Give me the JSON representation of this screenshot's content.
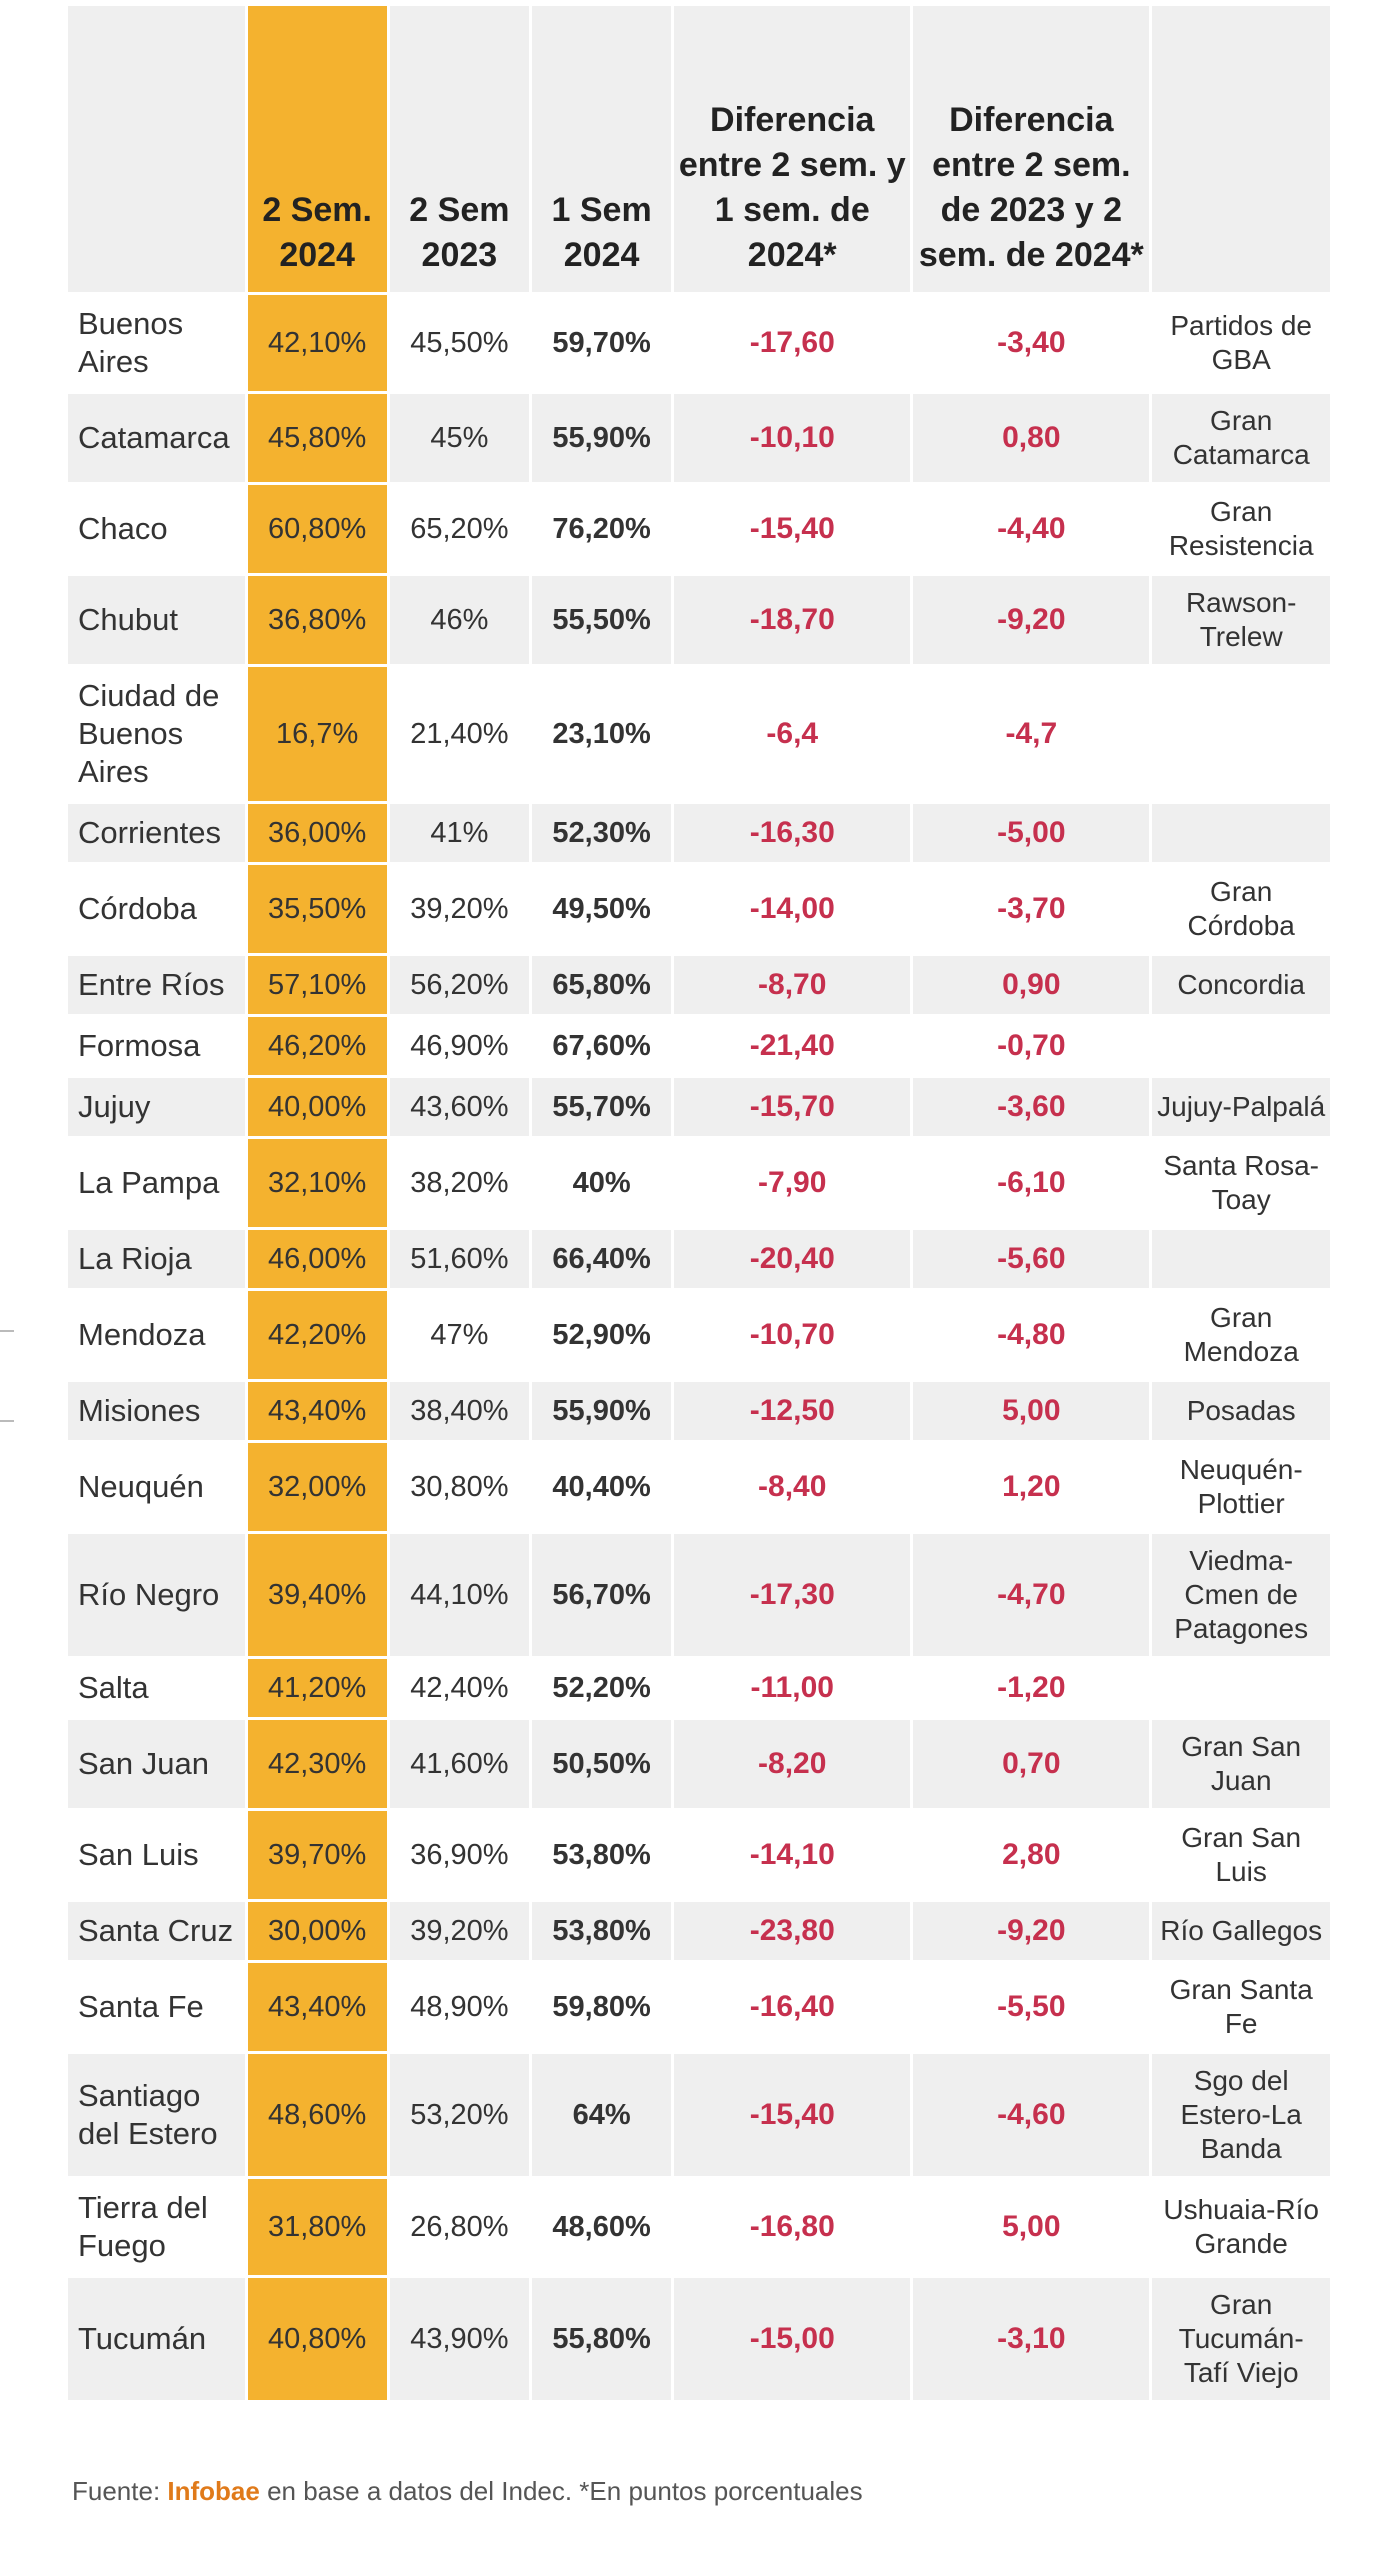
{
  "headers": [
    "",
    "2 Sem. 2024",
    "2 Sem 2023",
    "1 Sem 2024",
    "Diferencia entre 2 sem. y 1 sem. de 2024*",
    "Diferencia entre 2 sem. de 2023 y 2 sem. de 2024*",
    ""
  ],
  "rows": [
    [
      "Buenos Aires",
      "42,10%",
      "45,50%",
      "59,70%",
      "-17,60",
      "-3,40",
      "Partidos de GBA"
    ],
    [
      "Catamarca",
      "45,80%",
      "45%",
      "55,90%",
      "-10,10",
      "0,80",
      "Gran Catamarca"
    ],
    [
      "Chaco",
      "60,80%",
      "65,20%",
      "76,20%",
      "-15,40",
      "-4,40",
      "Gran Resistencia"
    ],
    [
      "Chubut",
      "36,80%",
      "46%",
      "55,50%",
      "-18,70",
      "-9,20",
      "Rawson-Trelew"
    ],
    [
      "Ciudad de Buenos Aires",
      "16,7%",
      "21,40%",
      "23,10%",
      "-6,4",
      "-4,7",
      ""
    ],
    [
      "Corrientes",
      "36,00%",
      "41%",
      "52,30%",
      "-16,30",
      "-5,00",
      ""
    ],
    [
      "Córdoba",
      "35,50%",
      "39,20%",
      "49,50%",
      "-14,00",
      "-3,70",
      "Gran Córdoba"
    ],
    [
      "Entre Ríos",
      "57,10%",
      "56,20%",
      "65,80%",
      "-8,70",
      "0,90",
      "Concordia"
    ],
    [
      "Formosa",
      "46,20%",
      "46,90%",
      "67,60%",
      "-21,40",
      "-0,70",
      ""
    ],
    [
      "Jujuy",
      "40,00%",
      "43,60%",
      "55,70%",
      "-15,70",
      "-3,60",
      "Jujuy-Palpalá"
    ],
    [
      "La Pampa",
      "32,10%",
      "38,20%",
      "40%",
      "-7,90",
      "-6,10",
      "Santa Rosa-Toay"
    ],
    [
      "La Rioja",
      "46,00%",
      "51,60%",
      "66,40%",
      "-20,40",
      "-5,60",
      ""
    ],
    [
      "Mendoza",
      "42,20%",
      "47%",
      "52,90%",
      "-10,70",
      "-4,80",
      "Gran Mendoza"
    ],
    [
      "Misiones",
      "43,40%",
      "38,40%",
      "55,90%",
      "-12,50",
      "5,00",
      "Posadas"
    ],
    [
      "Neuquén",
      "32,00%",
      "30,80%",
      "40,40%",
      "-8,40",
      "1,20",
      "Neuquén-Plottier"
    ],
    [
      "Río Negro",
      "39,40%",
      "44,10%",
      "56,70%",
      "-17,30",
      "-4,70",
      "Viedma-Cmen de Patagones"
    ],
    [
      "Salta",
      "41,20%",
      "42,40%",
      "52,20%",
      "-11,00",
      "-1,20",
      ""
    ],
    [
      "San Juan",
      "42,30%",
      "41,60%",
      "50,50%",
      "-8,20",
      "0,70",
      "Gran San Juan"
    ],
    [
      "San Luis",
      "39,70%",
      "36,90%",
      "53,80%",
      "-14,10",
      "2,80",
      "Gran San Luis"
    ],
    [
      "Santa Cruz",
      "30,00%",
      "39,20%",
      "53,80%",
      "-23,80",
      "-9,20",
      "Río Gallegos"
    ],
    [
      "Santa Fe",
      "43,40%",
      "48,90%",
      "59,80%",
      "-16,40",
      "-5,50",
      "Gran Santa Fe"
    ],
    [
      "Santiago del Estero",
      "48,60%",
      "53,20%",
      "64%",
      "-15,40",
      "-4,60",
      "Sgo del Estero-La Banda"
    ],
    [
      "Tierra del Fuego",
      "31,80%",
      "26,80%",
      "48,60%",
      "-16,80",
      "5,00",
      "Ushuaia-Río Grande"
    ],
    [
      "Tucumán",
      "40,80%",
      "43,90%",
      "55,80%",
      "-15,00",
      "-3,10",
      "Gran Tucumán-Tafí Viejo"
    ]
  ],
  "footer": {
    "prefix": "Fuente: ",
    "brand": "Infobae",
    "suffix": " en base a datos del Indec. *En puntos porcentuales"
  },
  "colors": {
    "highlight": "#f4b22f",
    "negative": "#c6304e",
    "stripe": "#efefef",
    "brand": "#e07a1a"
  }
}
